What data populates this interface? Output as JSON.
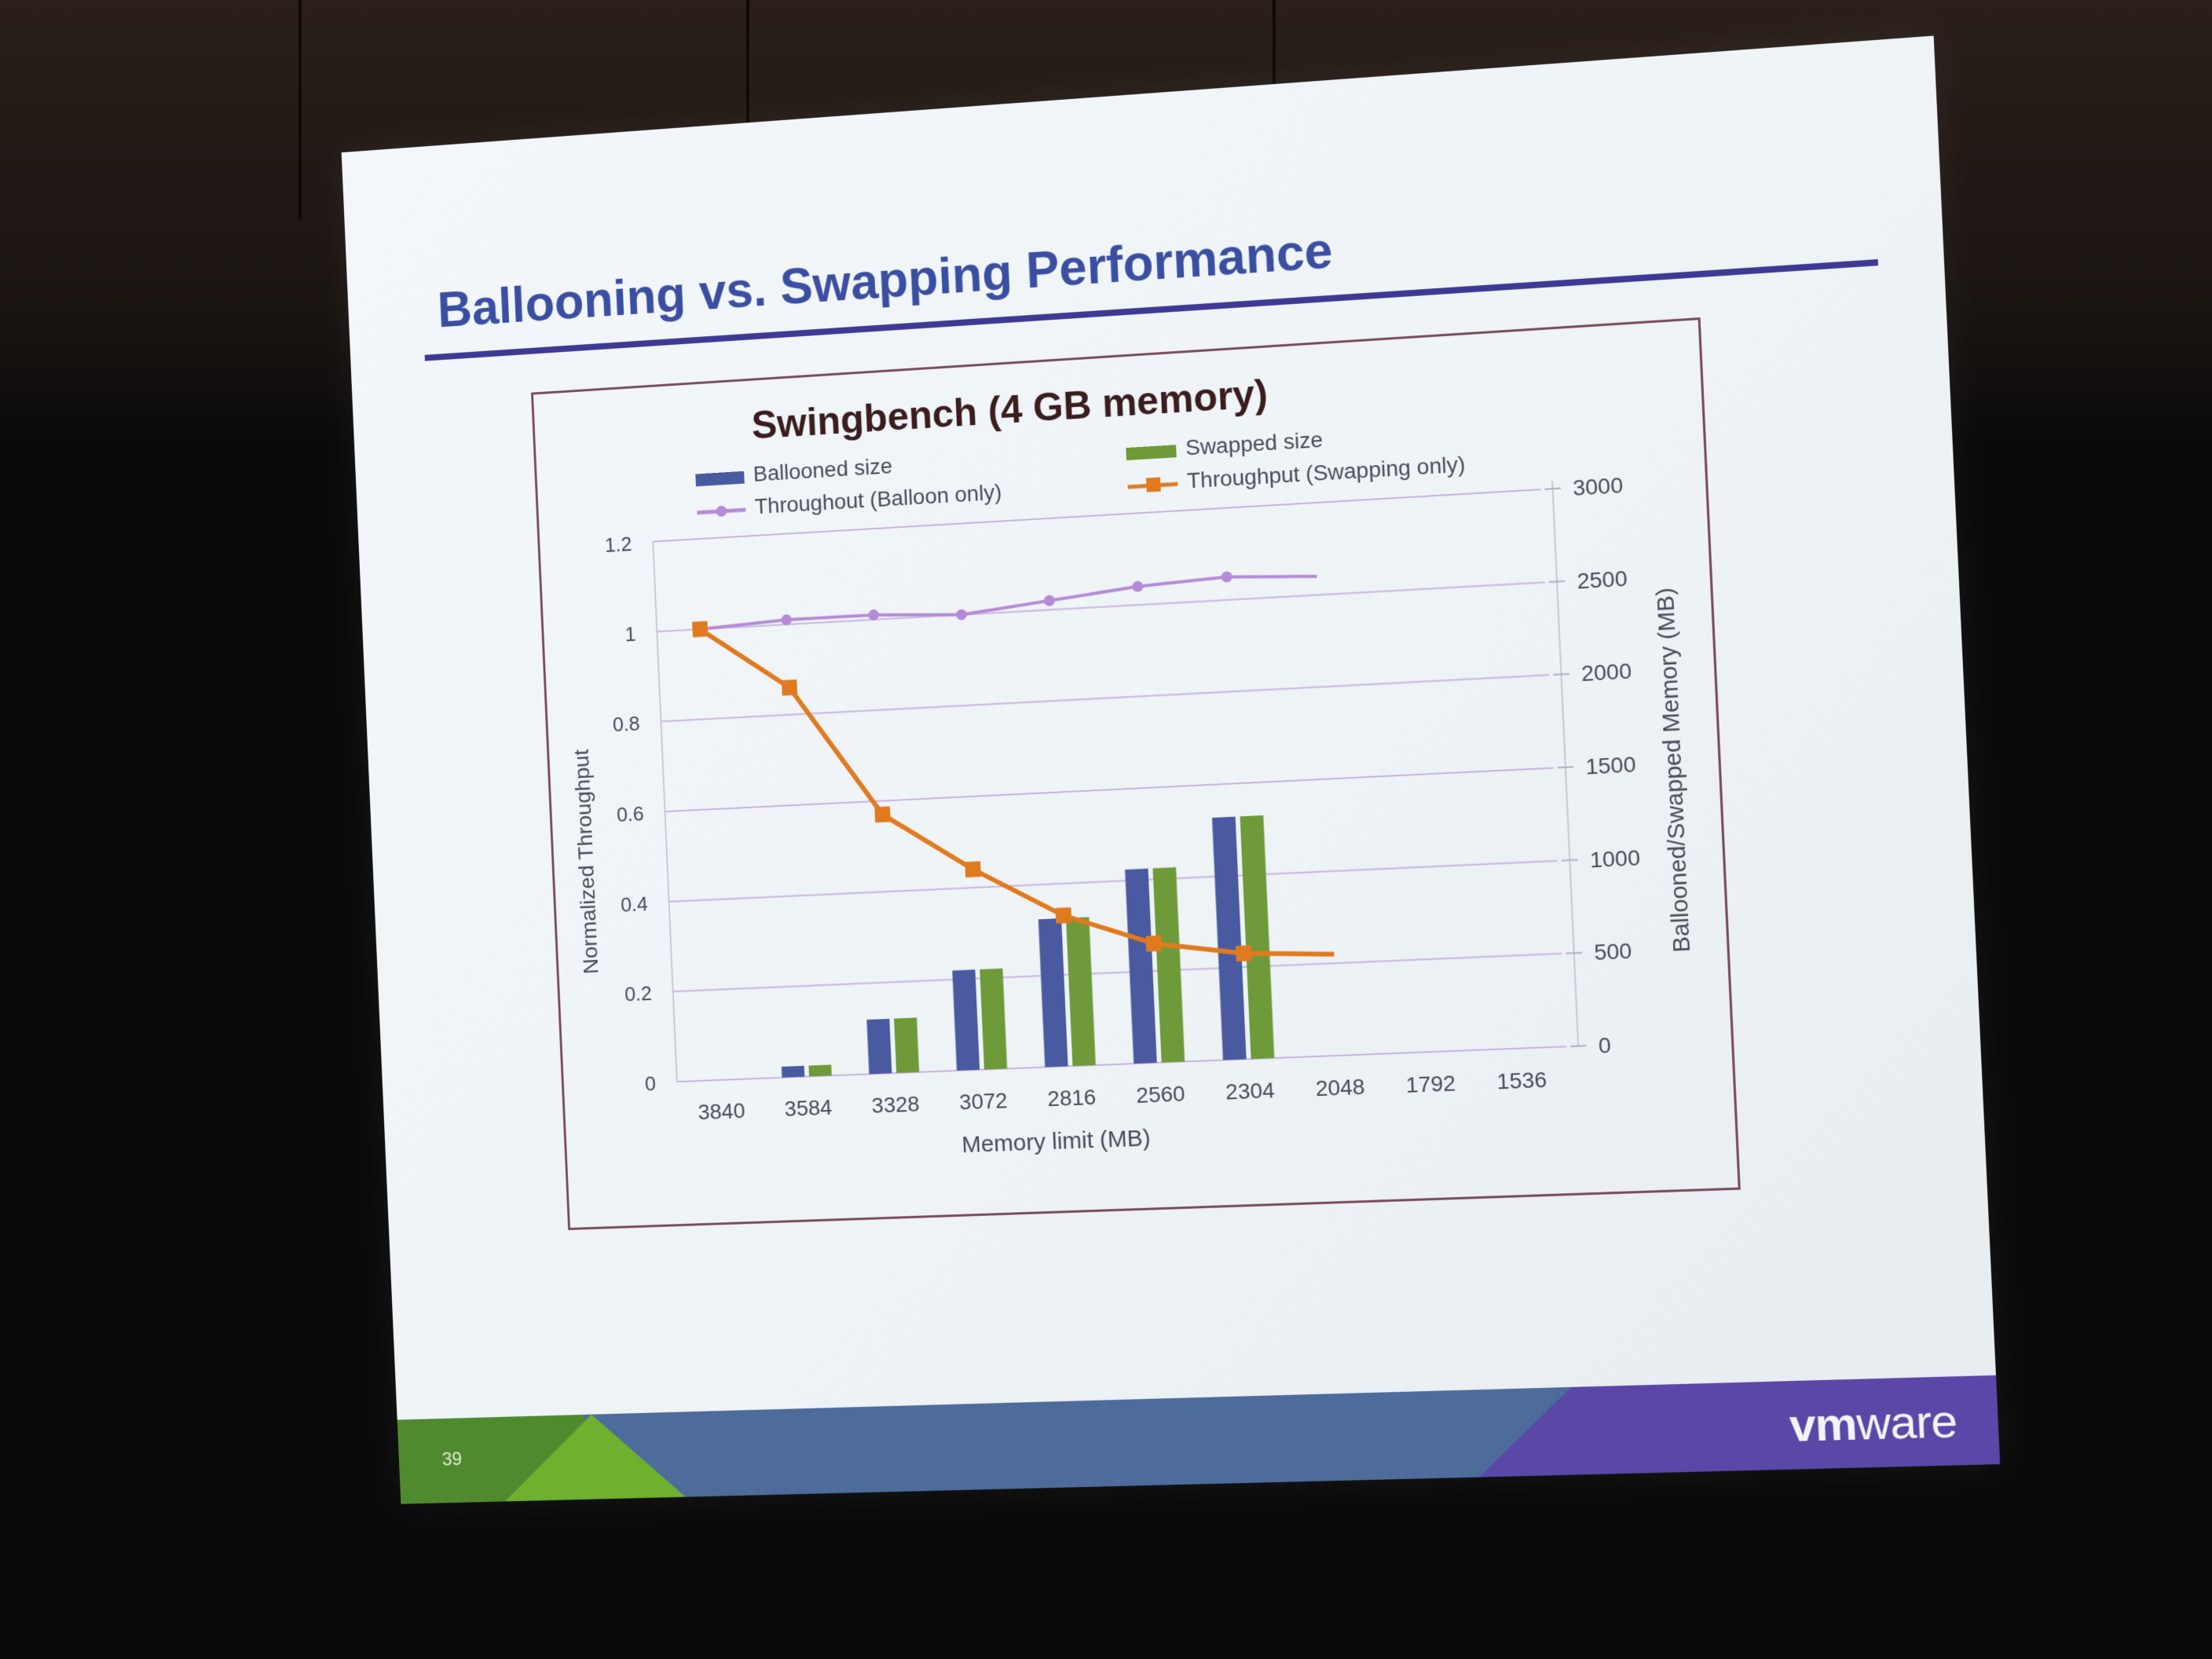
{
  "slide": {
    "title": "Ballooning vs. Swapping Performance",
    "page_number": "39",
    "logo_text": "vmware",
    "logo_prefix": "vm",
    "logo_suffix": "ware"
  },
  "colors": {
    "title": "#3b4fa2",
    "ballooned_bar": "#4a5aa0",
    "swapped_bar": "#6e9a3a",
    "balloon_line": "#b58ad8",
    "swap_line": "#e07a1e",
    "gridline": "#c9b3e2",
    "axis_text": "#4a4a58"
  },
  "chart_data": {
    "type": "bar",
    "title": "Swingbench (4 GB memory)",
    "xlabel": "Memory limit (MB)",
    "ylabel": "Normalized Throughput",
    "y2label": "Ballooned/Swapped Memory (MB)",
    "categories": [
      "3840",
      "3584",
      "3328",
      "3072",
      "2816",
      "2560",
      "2304",
      "2048",
      "1792",
      "1536"
    ],
    "ylim": [
      0,
      1.2
    ],
    "yticks": [
      "0",
      "0.2",
      "0.4",
      "0.6",
      "0.8",
      "1",
      "1.2"
    ],
    "y2lim": [
      0,
      3000
    ],
    "y2ticks": [
      "0",
      "500",
      "1000",
      "1500",
      "2000",
      "2500",
      "3000"
    ],
    "grid": true,
    "legend_position": "top",
    "series": [
      {
        "name": "Ballooned size",
        "type": "bar",
        "axis": "right",
        "values": [
          0,
          60,
          300,
          550,
          810,
          1060,
          1320,
          null,
          null,
          null
        ]
      },
      {
        "name": "Swapped size",
        "type": "bar",
        "axis": "right",
        "values": [
          0,
          60,
          300,
          550,
          810,
          1060,
          1320,
          null,
          null,
          null
        ]
      },
      {
        "name": "Throughout (Balloon only)",
        "type": "line",
        "axis": "left",
        "values": [
          1.0,
          1.01,
          1.01,
          1.0,
          1.02,
          1.04,
          1.05,
          1.04,
          null,
          null
        ]
      },
      {
        "name": "Throughput (Swapping only)",
        "type": "line",
        "axis": "left",
        "values": [
          1.0,
          0.86,
          0.57,
          0.44,
          0.33,
          0.26,
          0.23,
          0.22,
          null,
          null
        ]
      }
    ]
  }
}
